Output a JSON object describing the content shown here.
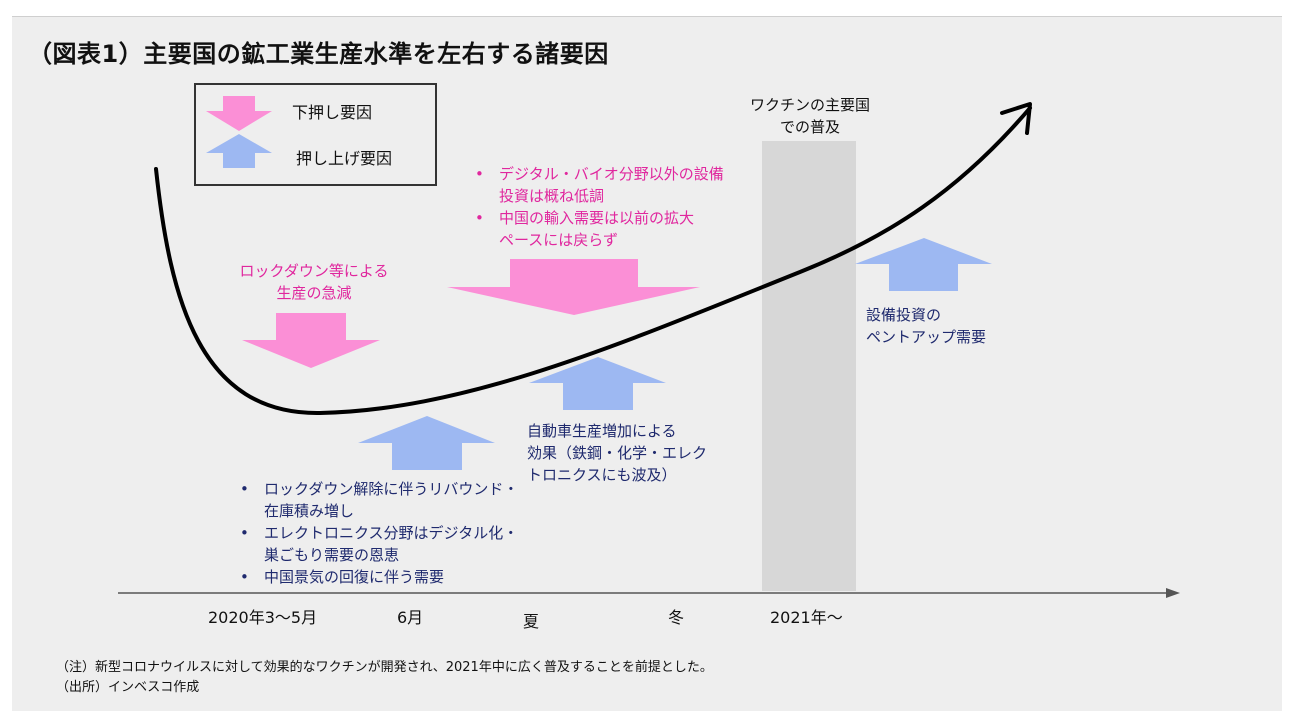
{
  "title": "（図表1）主要国の鉱工業生産水準を左右する諸要因",
  "legend": {
    "down_label": "下押し要因",
    "up_label": "押し上げ要因"
  },
  "vaccine_label": [
    "ワクチンの主要国",
    "での普及"
  ],
  "lockdown_label": [
    "ロックダウン等による",
    "生産の急減"
  ],
  "top_bullets": [
    [
      "デジタル・バイオ分野以外の設備",
      "投資は概ね低調"
    ],
    [
      "中国の輸入需要は以前の拡大",
      "ペースには戻らず"
    ]
  ],
  "auto_label": [
    "自動車生産増加による",
    "効果（鉄鋼・化学・エレク",
    "トロニクスにも波及）"
  ],
  "capex_label": [
    "設備投資の",
    "ペントアップ需要"
  ],
  "bottom_bullets": [
    [
      "ロックダウン解除に伴うリバウンド・",
      "在庫積み増し"
    ],
    [
      "エレクトロニクス分野はデジタル化・",
      "巣ごもり需要の恩恵"
    ],
    [
      "中国景気の回復に伴う需要"
    ]
  ],
  "x_labels": [
    "2020年3～5月",
    "6月",
    "夏",
    "冬",
    "2021年～"
  ],
  "notes": [
    "（注）新型コロナウイルスに対して効果的なワクチンが開発され、2021年中に広く普及することを前提とした。",
    "（出所）インベスコ作成"
  ],
  "colors": {
    "pink": "#fb8fd6",
    "blue": "#9db8f2",
    "pink_text": "#e0279e",
    "navy_text": "#1f2a6e",
    "band": "#d7d7d7"
  }
}
